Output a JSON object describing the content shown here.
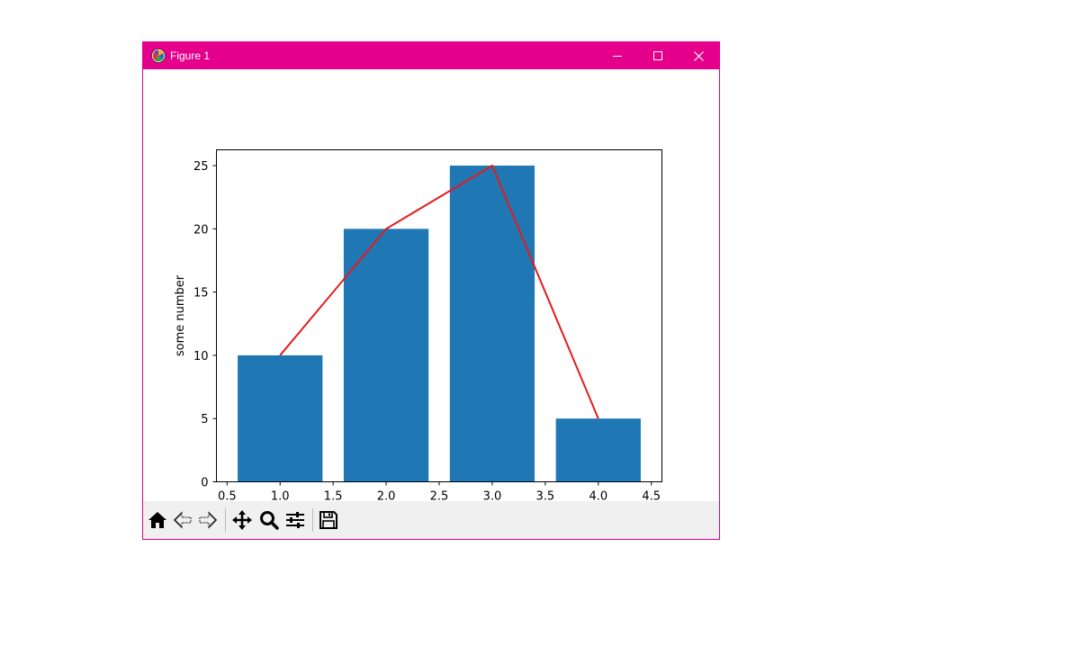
{
  "window": {
    "title": "Figure 1",
    "title_bar_color": "#e4008b",
    "icons": {
      "app": "matplotlib-icon",
      "minimize": "minimize-icon",
      "maximize": "maximize-icon",
      "close": "close-icon"
    }
  },
  "toolbar": {
    "buttons": [
      {
        "name": "home-icon",
        "action": "Reset original view"
      },
      {
        "name": "back-icon",
        "action": "Back to previous view"
      },
      {
        "name": "forward-icon",
        "action": "Forward to next view"
      },
      {
        "name": "pan-icon",
        "action": "Pan axes"
      },
      {
        "name": "zoom-icon",
        "action": "Zoom to rectangle"
      },
      {
        "name": "configure-subplots-icon",
        "action": "Configure subplots"
      },
      {
        "name": "save-icon",
        "action": "Save the figure"
      }
    ]
  },
  "chart_data": {
    "type": "bar",
    "x": [
      1.0,
      2.0,
      3.0,
      4.0
    ],
    "values": [
      10,
      20,
      25,
      5
    ],
    "bar_width": 0.8,
    "bar_color": "#1f77b4",
    "line": {
      "x": [
        1.0,
        2.0,
        3.0,
        4.0
      ],
      "y": [
        10,
        20,
        25,
        5
      ],
      "color": "#e41a1c"
    },
    "title": "",
    "xlabel": "",
    "ylabel": "some number",
    "xlim": [
      0.4,
      4.6
    ],
    "ylim": [
      0,
      26.25
    ],
    "xticks": [
      "0.5",
      "1.0",
      "1.5",
      "2.0",
      "2.5",
      "3.0",
      "3.5",
      "4.0",
      "4.5"
    ],
    "xtick_values": [
      0.5,
      1.0,
      1.5,
      2.0,
      2.5,
      3.0,
      3.5,
      4.0,
      4.5
    ],
    "yticks": [
      "0",
      "5",
      "10",
      "15",
      "20",
      "25"
    ],
    "ytick_values": [
      0,
      5,
      10,
      15,
      20,
      25
    ],
    "grid": false,
    "legend": "none"
  }
}
